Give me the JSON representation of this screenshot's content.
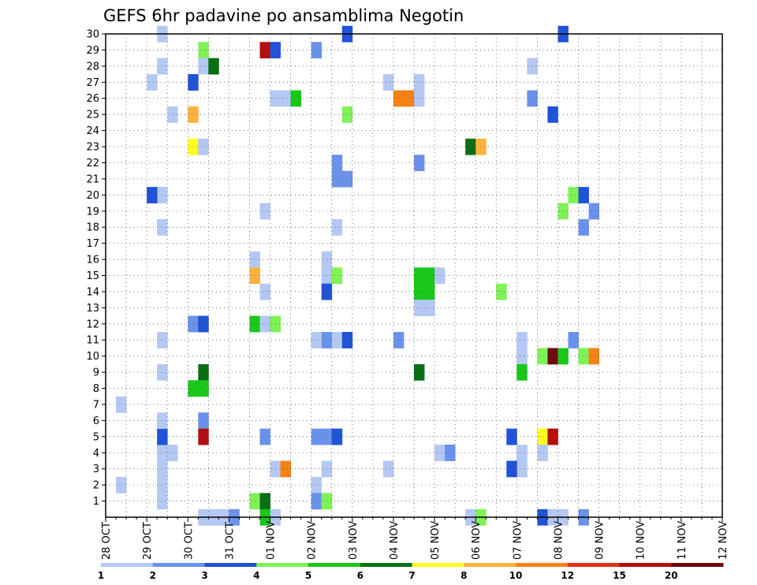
{
  "chart_data": {
    "type": "heatmap",
    "title": "GEFS 6hr padavine po ansamblima Negotin",
    "xlabel": "",
    "ylabel": "",
    "x_tick_labels": [
      "28 OCT",
      "29 OCT",
      "30 OCT",
      "31 OCT",
      "01 NOV",
      "02 NOV",
      "03 NOV",
      "04 NOV",
      "05 NOV",
      "06 NOV",
      "07 NOV",
      "08 NOV",
      "09 NOV",
      "10 NOV",
      "11 NOV",
      "12 NOV"
    ],
    "y_tick_labels": [
      1,
      2,
      3,
      4,
      5,
      6,
      7,
      8,
      9,
      10,
      11,
      12,
      13,
      14,
      15,
      16,
      17,
      18,
      19,
      20,
      21,
      22,
      23,
      24,
      25,
      26,
      27,
      28,
      29,
      30
    ],
    "xlim_days": [
      0,
      15
    ],
    "ylim": [
      0,
      30
    ],
    "grid": true,
    "x_unit": "day since 28 OCT 00Z, 6h steps",
    "colorbar": {
      "placement": "bottom",
      "tick_labels": [
        "1",
        "2",
        "3",
        "4",
        "5",
        "6",
        "7",
        "8",
        "10",
        "12",
        "15",
        "20"
      ],
      "colors": [
        "#b4c8f4",
        "#6b92ea",
        "#1f53d8",
        "#7ff256",
        "#19c819",
        "#0a6e14",
        "#ffff1e",
        "#ffb23c",
        "#f58213",
        "#e03214",
        "#b40f0f",
        "#6e0a0a"
      ]
    },
    "cells": [
      [
        1.25,
        1,
        1
      ],
      [
        1.25,
        2,
        1
      ],
      [
        1.25,
        3,
        1
      ],
      [
        1.25,
        4,
        1
      ],
      [
        1.25,
        5,
        3
      ],
      [
        1.25,
        6,
        1
      ],
      [
        1.25,
        9,
        1
      ],
      [
        1.25,
        11,
        1
      ],
      [
        1.25,
        18,
        1
      ],
      [
        1.25,
        20,
        1
      ],
      [
        1.25,
        28,
        1
      ],
      [
        1.25,
        30,
        1
      ],
      [
        1.0,
        20,
        3
      ],
      [
        1.0,
        27,
        1
      ],
      [
        0.25,
        7,
        1
      ],
      [
        0.25,
        2,
        1
      ],
      [
        1.5,
        4,
        1
      ],
      [
        1.5,
        25,
        1
      ],
      [
        2.0,
        27,
        3
      ],
      [
        2.0,
        25,
        8
      ],
      [
        2.0,
        23,
        7
      ],
      [
        2.0,
        12,
        2
      ],
      [
        2.0,
        8,
        5
      ],
      [
        2.25,
        29,
        4
      ],
      [
        2.25,
        28,
        1
      ],
      [
        2.25,
        23,
        1
      ],
      [
        2.25,
        12,
        3
      ],
      [
        2.25,
        9,
        6
      ],
      [
        2.25,
        8,
        5
      ],
      [
        2.25,
        6,
        2
      ],
      [
        2.25,
        5,
        11
      ],
      [
        2.5,
        28,
        6
      ],
      [
        2.25,
        0,
        1
      ],
      [
        2.5,
        0,
        1
      ],
      [
        2.75,
        0,
        1
      ],
      [
        3.0,
        0,
        2
      ],
      [
        3.5,
        16,
        1
      ],
      [
        3.5,
        15,
        8
      ],
      [
        3.5,
        12,
        5
      ],
      [
        3.5,
        1,
        4
      ],
      [
        3.75,
        1,
        6
      ],
      [
        3.75,
        0,
        5
      ],
      [
        4.0,
        0,
        1
      ],
      [
        3.75,
        29,
        11
      ],
      [
        4.0,
        29,
        3
      ],
      [
        3.75,
        19,
        1
      ],
      [
        3.75,
        14,
        1
      ],
      [
        3.75,
        12,
        1
      ],
      [
        4.0,
        12,
        4
      ],
      [
        3.75,
        5,
        2
      ],
      [
        4.0,
        26,
        1
      ],
      [
        4.25,
        26,
        1
      ],
      [
        4.5,
        26,
        5
      ],
      [
        4.0,
        3,
        1
      ],
      [
        4.25,
        3,
        9
      ],
      [
        5.0,
        29,
        2
      ],
      [
        5.0,
        11,
        1
      ],
      [
        5.0,
        5,
        2
      ],
      [
        5.0,
        2,
        1
      ],
      [
        5.0,
        1,
        2
      ],
      [
        5.25,
        1,
        4
      ],
      [
        5.25,
        16,
        1
      ],
      [
        5.25,
        15,
        1
      ],
      [
        5.25,
        14,
        3
      ],
      [
        5.25,
        11,
        2
      ],
      [
        5.25,
        5,
        2
      ],
      [
        5.25,
        3,
        1
      ],
      [
        5.5,
        22,
        2
      ],
      [
        5.5,
        21,
        2
      ],
      [
        5.5,
        18,
        1
      ],
      [
        5.5,
        15,
        4
      ],
      [
        5.5,
        11,
        1
      ],
      [
        5.5,
        5,
        3
      ],
      [
        5.75,
        30,
        3
      ],
      [
        5.75,
        25,
        4
      ],
      [
        5.75,
        21,
        2
      ],
      [
        5.75,
        11,
        3
      ],
      [
        6.75,
        27,
        1
      ],
      [
        6.75,
        3,
        1
      ],
      [
        7.0,
        26,
        9
      ],
      [
        7.25,
        26,
        9
      ],
      [
        7.0,
        11,
        2
      ],
      [
        7.5,
        27,
        1
      ],
      [
        7.5,
        26,
        1
      ],
      [
        7.5,
        22,
        2
      ],
      [
        7.5,
        15,
        5
      ],
      [
        7.5,
        14,
        5
      ],
      [
        7.5,
        13,
        1
      ],
      [
        7.5,
        9,
        6
      ],
      [
        7.75,
        15,
        5
      ],
      [
        7.75,
        14,
        5
      ],
      [
        7.75,
        13,
        1
      ],
      [
        8.0,
        15,
        1
      ],
      [
        8.0,
        4,
        1
      ],
      [
        8.25,
        4,
        2
      ],
      [
        8.75,
        23,
        6
      ],
      [
        9.0,
        23,
        8
      ],
      [
        8.75,
        0,
        1
      ],
      [
        9.0,
        0,
        4
      ],
      [
        9.5,
        14,
        4
      ],
      [
        10.0,
        11,
        1
      ],
      [
        10.0,
        10,
        1
      ],
      [
        10.0,
        9,
        5
      ],
      [
        10.0,
        4,
        1
      ],
      [
        10.0,
        3,
        1
      ],
      [
        9.75,
        5,
        3
      ],
      [
        9.75,
        3,
        3
      ],
      [
        10.25,
        28,
        1
      ],
      [
        10.25,
        26,
        2
      ],
      [
        10.5,
        10,
        4
      ],
      [
        10.5,
        5,
        7
      ],
      [
        10.5,
        4,
        1
      ],
      [
        10.5,
        0,
        3
      ],
      [
        10.75,
        25,
        3
      ],
      [
        10.75,
        10,
        12
      ],
      [
        10.75,
        5,
        11
      ],
      [
        10.75,
        0,
        1
      ],
      [
        11.0,
        10,
        5
      ],
      [
        11.0,
        30,
        3
      ],
      [
        11.0,
        19,
        4
      ],
      [
        11.0,
        0,
        1
      ],
      [
        11.25,
        20,
        4
      ],
      [
        11.25,
        11,
        2
      ],
      [
        11.5,
        20,
        3
      ],
      [
        11.5,
        10,
        4
      ],
      [
        11.5,
        18,
        2
      ],
      [
        11.5,
        0,
        2
      ],
      [
        11.75,
        19,
        2
      ],
      [
        11.75,
        10,
        9
      ]
    ]
  }
}
